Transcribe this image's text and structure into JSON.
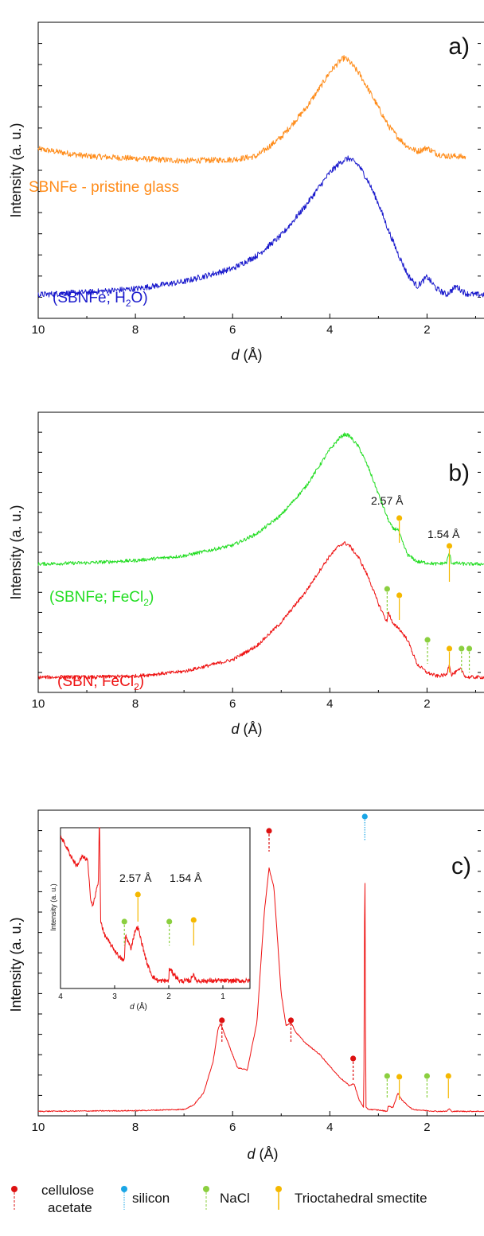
{
  "figure": {
    "panels": [
      {
        "panel_label": "a)",
        "xlabel_var": "d",
        "xlabel_unit": " (Å)",
        "ylabel": "Intensity (a. u.)",
        "xticks": [
          "10",
          "8",
          "6",
          "4",
          "2"
        ],
        "series_labels": [
          {
            "text": "SBNFe - pristine glass",
            "color": "#ff8c1a"
          },
          {
            "text": "(SBNFe; H",
            "sub": "2",
            "text2": "O)",
            "color": "#1a1acc"
          }
        ],
        "peak_labels": [],
        "inset": null
      },
      {
        "panel_label": "b)",
        "xlabel_var": "d",
        "xlabel_unit": " (Å)",
        "ylabel": "Intensity (a. u.)",
        "xticks": [
          "10",
          "8",
          "6",
          "4",
          "2"
        ],
        "series_labels": [
          {
            "text": "(SBNFe; FeCl",
            "sub": "2",
            "text2": ")",
            "color": "#22dd22"
          },
          {
            "text": "(SBN; FeCl",
            "sub": "2",
            "text2": ")",
            "color": "#ee1111"
          }
        ],
        "peak_labels": [
          "2.57 Å",
          "1.54 Å"
        ],
        "inset": null
      },
      {
        "panel_label": "c)",
        "xlabel_var": "d",
        "xlabel_unit": " (Å)",
        "ylabel": "Intensity (a. u.)",
        "xticks": [
          "10",
          "8",
          "6",
          "4",
          "2"
        ],
        "series_labels": [],
        "peak_labels": [],
        "inset": {
          "ylabel": "Intensity (a. u.)",
          "xlabel_var": "d",
          "xlabel_unit": " (Å)",
          "xticks": [
            "4",
            "3",
            "2",
            "1"
          ],
          "peak_labels": [
            "2.57 Å",
            "1.54 Å"
          ]
        }
      }
    ],
    "colors": {
      "orange": "#ff8c1a",
      "blue": "#1a1acc",
      "green": "#22dd22",
      "red": "#ee1111",
      "marker_cellulose": "#dd1111",
      "marker_silicon": "#1aa6e6",
      "marker_nacl": "#8bcf3f",
      "marker_smectite": "#f5b800"
    }
  },
  "legend": {
    "items": [
      {
        "key": "cellulose",
        "line1": "cellulose",
        "line2": "acetate",
        "icon": "red-dot-dashed-marker"
      },
      {
        "key": "silicon",
        "line1": "silicon",
        "icon": "blue-dot-dotted-marker"
      },
      {
        "key": "nacl",
        "line1": "NaCl",
        "icon": "green-dot-dashed-marker"
      },
      {
        "key": "smectite",
        "line1": "Trioctahedral smectite",
        "icon": "yellow-dot-solid-marker"
      }
    ]
  },
  "chart_data": [
    {
      "type": "line",
      "panel": "a)",
      "xlabel": "d (Å)",
      "ylabel": "Intensity (a. u.)",
      "xlim": [
        10,
        0.5
      ],
      "x_reversed": true,
      "series": [
        {
          "name": "SBNFe - pristine glass",
          "color": "#ff8c1a",
          "x": [
            10,
            9,
            8,
            7,
            6,
            5.5,
            5,
            4.5,
            4.2,
            4.0,
            3.8,
            3.7,
            3.6,
            3.4,
            3.2,
            3.0,
            2.8,
            2.6,
            2.4,
            2.2,
            2.0,
            1.8,
            1.6,
            1.4,
            1.2
          ],
          "y": [
            1.28,
            1.22,
            1.2,
            1.18,
            1.19,
            1.22,
            1.38,
            1.62,
            1.8,
            1.93,
            2.02,
            2.05,
            2.02,
            1.92,
            1.78,
            1.63,
            1.48,
            1.38,
            1.3,
            1.26,
            1.29,
            1.24,
            1.22,
            1.22,
            1.21
          ]
        },
        {
          "name": "(SBNFe; H2O)",
          "color": "#1a1acc",
          "x": [
            10,
            9,
            8,
            7,
            6,
            5.5,
            5,
            4.5,
            4.2,
            4.0,
            3.8,
            3.7,
            3.6,
            3.4,
            3.2,
            3.0,
            2.8,
            2.6,
            2.4,
            2.2,
            2.0,
            1.9,
            1.8,
            1.6,
            1.4,
            1.2,
            1.0,
            0.5
          ],
          "y": [
            0.05,
            0.07,
            0.1,
            0.16,
            0.27,
            0.38,
            0.55,
            0.8,
            0.97,
            1.08,
            1.16,
            1.19,
            1.2,
            1.14,
            1.0,
            0.82,
            0.6,
            0.4,
            0.22,
            0.12,
            0.2,
            0.15,
            0.1,
            0.05,
            0.12,
            0.06,
            0.05,
            0.05
          ]
        }
      ]
    },
    {
      "type": "line",
      "panel": "b)",
      "xlabel": "d (Å)",
      "ylabel": "Intensity (a. u.)",
      "xlim": [
        10,
        0.5
      ],
      "x_reversed": true,
      "series": [
        {
          "name": "(SBNFe; FeCl2)",
          "color": "#22dd22",
          "x": [
            10,
            9,
            8,
            7,
            6,
            5.5,
            5,
            4.5,
            4.2,
            4.0,
            3.8,
            3.7,
            3.6,
            3.4,
            3.2,
            3.0,
            2.8,
            2.7,
            2.6,
            2.5,
            2.4,
            2.2,
            2.0,
            1.8,
            1.6,
            1.54,
            1.5,
            1.2,
            0.5
          ],
          "y": [
            1.0,
            1.01,
            1.03,
            1.07,
            1.16,
            1.26,
            1.42,
            1.66,
            1.85,
            1.98,
            2.08,
            2.11,
            2.1,
            2.0,
            1.82,
            1.6,
            1.38,
            1.3,
            1.3,
            1.18,
            1.08,
            1.02,
            1.01,
            1.0,
            1.01,
            1.1,
            1.01,
            1.0,
            1.0
          ]
        },
        {
          "name": "(SBN; FeCl2)",
          "color": "#ee1111",
          "x": [
            10,
            9,
            8,
            7,
            6,
            5.5,
            5,
            4.5,
            4.2,
            4.0,
            3.8,
            3.7,
            3.6,
            3.4,
            3.2,
            3.0,
            2.82,
            2.8,
            2.7,
            2.6,
            2.4,
            2.2,
            2.0,
            1.8,
            1.6,
            1.54,
            1.5,
            1.3,
            1.2,
            0.5
          ],
          "y": [
            0.03,
            0.03,
            0.04,
            0.08,
            0.18,
            0.3,
            0.5,
            0.76,
            0.95,
            1.07,
            1.16,
            1.18,
            1.16,
            1.05,
            0.88,
            0.66,
            0.5,
            0.6,
            0.48,
            0.46,
            0.35,
            0.14,
            0.07,
            0.04,
            0.05,
            0.15,
            0.05,
            0.1,
            0.03,
            0.03
          ]
        }
      ],
      "annotations": [
        "2.57 Å",
        "1.54 Å"
      ]
    },
    {
      "type": "line",
      "panel": "c)",
      "xlabel": "d (Å)",
      "ylabel": "Intensity (a. u.)",
      "xlim": [
        10,
        0.5
      ],
      "x_reversed": true,
      "series": [
        {
          "name": "",
          "color": "#ee1111",
          "x": [
            10,
            8,
            7,
            6.8,
            6.6,
            6.4,
            6.3,
            6.25,
            6.1,
            5.9,
            5.7,
            5.5,
            5.35,
            5.25,
            5.15,
            5.0,
            4.9,
            4.8,
            4.7,
            4.5,
            4.2,
            4.0,
            3.8,
            3.6,
            3.5,
            3.4,
            3.3,
            3.28,
            3.26,
            3.2,
            3.0,
            2.82,
            2.8,
            2.7,
            2.6,
            2.5,
            2.3,
            2.0,
            1.8,
            1.6,
            1.54,
            1.5,
            0.5
          ],
          "y": [
            0.02,
            0.03,
            0.05,
            0.12,
            0.3,
            0.8,
            1.3,
            1.38,
            1.1,
            0.7,
            0.66,
            1.4,
            3.1,
            3.8,
            3.5,
            1.85,
            1.35,
            1.4,
            1.25,
            1.08,
            0.9,
            0.72,
            0.55,
            0.42,
            0.45,
            0.2,
            0.08,
            4.4,
            0.08,
            0.05,
            0.04,
            0.02,
            0.1,
            0.08,
            0.3,
            0.18,
            0.05,
            0.03,
            0.02,
            0.02,
            0.06,
            0.02,
            0.02
          ]
        }
      ]
    },
    {
      "type": "line",
      "panel": "c) inset",
      "xlabel": "d (Å)",
      "ylabel": "Intensity (a. u.)",
      "xlim": [
        4,
        0.5
      ],
      "x_reversed": true,
      "series": [
        {
          "name": "",
          "color": "#ee1111",
          "x": [
            4.0,
            3.8,
            3.7,
            3.6,
            3.5,
            3.45,
            3.4,
            3.35,
            3.3,
            3.28,
            3.26,
            3.2,
            3.1,
            3.0,
            2.9,
            2.82,
            2.8,
            2.7,
            2.62,
            2.57,
            2.5,
            2.4,
            2.3,
            2.2,
            2.0,
            1.99,
            1.8,
            1.6,
            1.54,
            1.5,
            1.2,
            0.5
          ],
          "y": [
            1.0,
            0.86,
            0.8,
            0.86,
            0.84,
            0.6,
            0.54,
            0.62,
            0.7,
            1.2,
            0.45,
            0.36,
            0.3,
            0.25,
            0.2,
            0.18,
            0.35,
            0.26,
            0.38,
            0.4,
            0.3,
            0.16,
            0.08,
            0.05,
            0.05,
            0.13,
            0.05,
            0.05,
            0.1,
            0.05,
            0.05,
            0.05
          ]
        }
      ],
      "annotations": [
        "2.57 Å",
        "1.54 Å"
      ]
    }
  ]
}
